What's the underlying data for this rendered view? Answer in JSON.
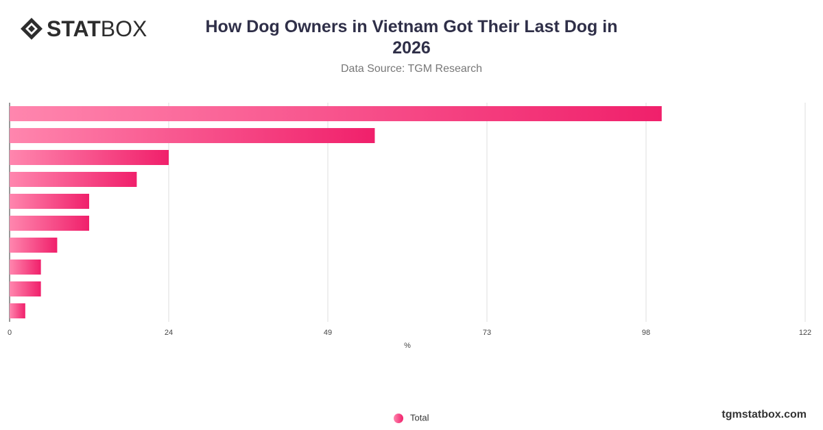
{
  "logo": {
    "bold": "STAT",
    "light": "BOX"
  },
  "footer": "tgmstatbox.com",
  "chart_data": {
    "type": "hbar",
    "title": "How Dog Owners in Vietnam Got Their Last Dog in 2026",
    "subtitle": "Data Source: TGM Research",
    "x_label": "%",
    "categories": [
      null,
      null,
      null,
      null,
      null,
      null,
      null,
      null,
      null,
      null
    ],
    "series": [
      {
        "name": "Total",
        "color": "#f0206b",
        "values": [
          100,
          56,
          24.4,
          19.5,
          12.2,
          12.2,
          7.3,
          4.8,
          4.8,
          2.4
        ]
      }
    ],
    "xlim": [
      0,
      122
    ],
    "xticks": [
      0,
      {
        "value": 24.4,
        "label": "24"
      },
      {
        "value": 48.8,
        "label": "49"
      },
      {
        "value": 73.2,
        "label": "73"
      },
      {
        "value": 97.6,
        "label": "98"
      },
      122
    ],
    "grid": true,
    "legend": "bottom"
  }
}
